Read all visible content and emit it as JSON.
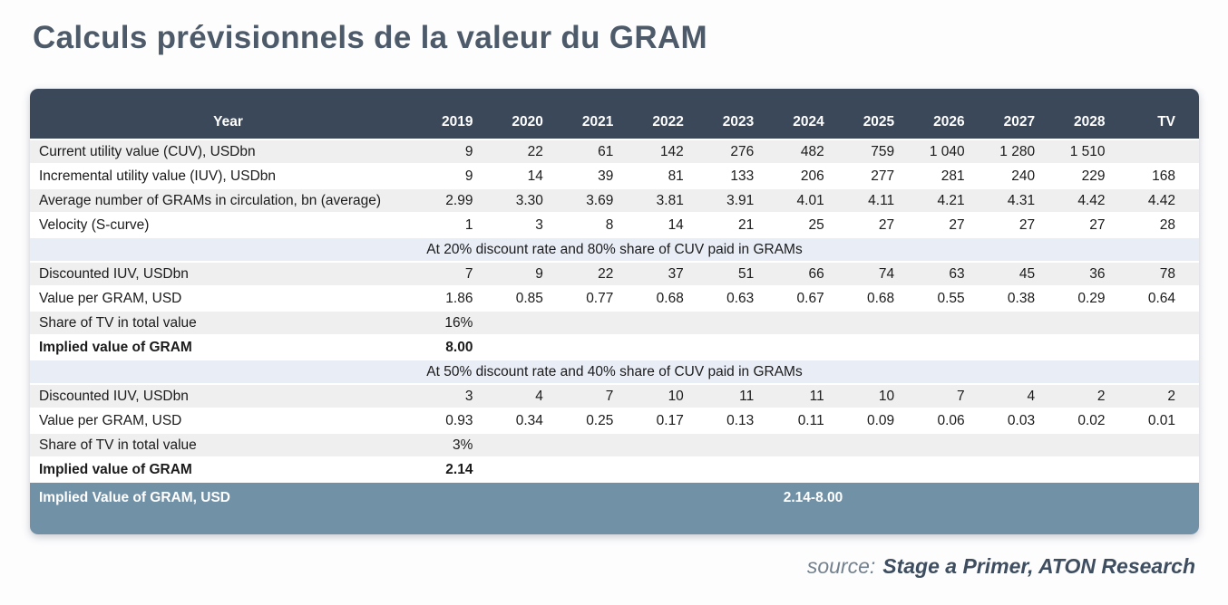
{
  "header": {
    "title": "Calculs prévisionnels de la valeur du GRAM"
  },
  "source": {
    "label": "source:",
    "value": "Stage a Primer, ATON Research"
  },
  "colors": {
    "header_bg": "#3b4859",
    "summary_bg": "#7191a6",
    "section_bg": "#e9edf6",
    "row_alt_bg": "#efeff0",
    "title_text": "#4d5a6a"
  },
  "chart_data": {
    "type": "table",
    "title": "Calculs prévisionnels de la valeur du GRAM",
    "columns": [
      "Year",
      "2019",
      "2020",
      "2021",
      "2022",
      "2023",
      "2024",
      "2025",
      "2026",
      "2027",
      "2028",
      "TV"
    ],
    "rows": [
      {
        "style": "data",
        "label": "Current utility value (CUV), USDbn",
        "values": [
          "9",
          "22",
          "61",
          "142",
          "276",
          "482",
          "759",
          "1 040",
          "1 280",
          "1 510",
          ""
        ]
      },
      {
        "style": "data",
        "label": "Incremental utility value (IUV), USDbn",
        "values": [
          "9",
          "14",
          "39",
          "81",
          "133",
          "206",
          "277",
          "281",
          "240",
          "229",
          "168"
        ]
      },
      {
        "style": "data",
        "label": "Average number of GRAMs in circulation, bn (average)",
        "values": [
          "2.99",
          "3.30",
          "3.69",
          "3.81",
          "3.91",
          "4.01",
          "4.11",
          "4.21",
          "4.31",
          "4.42",
          "4.42"
        ]
      },
      {
        "style": "data",
        "label": "Velocity (S-curve)",
        "values": [
          "1",
          "3",
          "8",
          "14",
          "21",
          "25",
          "27",
          "27",
          "27",
          "27",
          "28"
        ]
      },
      {
        "style": "section",
        "label": "At 20% discount rate and 80% share of CUV paid in GRAMs"
      },
      {
        "style": "data",
        "label": "Discounted IUV, USDbn",
        "values": [
          "7",
          "9",
          "22",
          "37",
          "51",
          "66",
          "74",
          "63",
          "45",
          "36",
          "78"
        ]
      },
      {
        "style": "data",
        "label": "Value per GRAM, USD",
        "values": [
          "1.86",
          "0.85",
          "0.77",
          "0.68",
          "0.63",
          "0.67",
          "0.68",
          "0.55",
          "0.38",
          "0.29",
          "0.64"
        ]
      },
      {
        "style": "data",
        "label": "Share of TV in total value",
        "values": [
          "16%",
          "",
          "",
          "",
          "",
          "",
          "",
          "",
          "",
          "",
          ""
        ]
      },
      {
        "style": "bold",
        "label": "Implied value of GRAM",
        "values": [
          "8.00",
          "",
          "",
          "",
          "",
          "",
          "",
          "",
          "",
          "",
          ""
        ]
      },
      {
        "style": "section",
        "label": "At 50% discount rate and 40% share of CUV paid in GRAMs"
      },
      {
        "style": "data",
        "label": "Discounted IUV, USDbn",
        "values": [
          "3",
          "4",
          "7",
          "10",
          "11",
          "11",
          "10",
          "7",
          "4",
          "2",
          "2"
        ]
      },
      {
        "style": "data",
        "label": "Value per GRAM, USD",
        "values": [
          "0.93",
          "0.34",
          "0.25",
          "0.17",
          "0.13",
          "0.11",
          "0.09",
          "0.06",
          "0.03",
          "0.02",
          "0.01"
        ]
      },
      {
        "style": "data",
        "label": "Share of TV in total value",
        "values": [
          "3%",
          "",
          "",
          "",
          "",
          "",
          "",
          "",
          "",
          "",
          ""
        ]
      },
      {
        "style": "bold",
        "label": "Implied value of GRAM",
        "values": [
          "2.14",
          "",
          "",
          "",
          "",
          "",
          "",
          "",
          "",
          "",
          ""
        ]
      }
    ],
    "summary_row": {
      "label": "Implied Value of GRAM, USD",
      "value": "2.14-8.00"
    }
  }
}
